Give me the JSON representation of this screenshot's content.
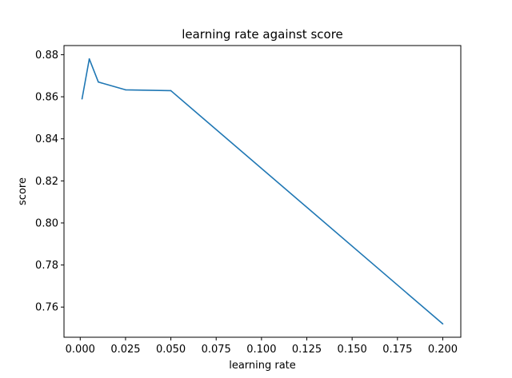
{
  "chart_data": {
    "type": "line",
    "title": "learning rate against score",
    "xlabel": "learning rate",
    "ylabel": "score",
    "xlim": [
      -0.00895,
      0.20995
    ],
    "ylim": [
      0.74565,
      0.88435
    ],
    "x_ticks": [
      0.0,
      0.025,
      0.05,
      0.075,
      0.1,
      0.125,
      0.15,
      0.175,
      0.2
    ],
    "x_tick_labels": [
      "0.000",
      "0.025",
      "0.050",
      "0.075",
      "0.100",
      "0.125",
      "0.150",
      "0.175",
      "0.200"
    ],
    "y_ticks": [
      0.76,
      0.78,
      0.8,
      0.82,
      0.84,
      0.86,
      0.88
    ],
    "y_tick_labels": [
      "0.76",
      "0.78",
      "0.80",
      "0.82",
      "0.84",
      "0.86",
      "0.88"
    ],
    "grid": false,
    "series": [
      {
        "color": "#1f77b4",
        "x": [
          0.001,
          0.005,
          0.01,
          0.025,
          0.05,
          0.2
        ],
        "y": [
          0.859,
          0.878,
          0.867,
          0.8633,
          0.8629,
          0.752
        ]
      }
    ]
  }
}
